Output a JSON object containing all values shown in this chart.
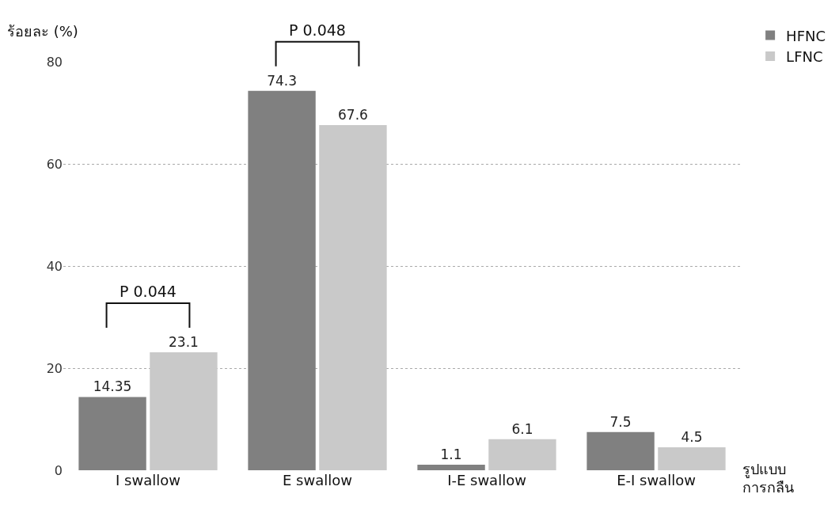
{
  "chart_data": {
    "type": "bar",
    "ylabel": "ร้อยละ (%)",
    "xlabel": "รูปแบบ\nการกลืน",
    "categories": [
      "I swallow",
      "E swallow",
      "I-E swallow",
      "E-I swallow"
    ],
    "series": [
      {
        "name": "HFNC",
        "color": "#808080",
        "values": [
          14.35,
          74.3,
          1.1,
          7.5
        ]
      },
      {
        "name": "LFNC",
        "color": "#c9c9c9",
        "values": [
          23.1,
          67.6,
          6.1,
          4.5
        ]
      }
    ],
    "ylim": [
      0,
      80
    ],
    "yticks": [
      0,
      20,
      40,
      60,
      80
    ],
    "grid": "y",
    "legend": "top right",
    "data_labels": true,
    "annotations": [
      "P 0.044",
      "P 0.048"
    ]
  }
}
